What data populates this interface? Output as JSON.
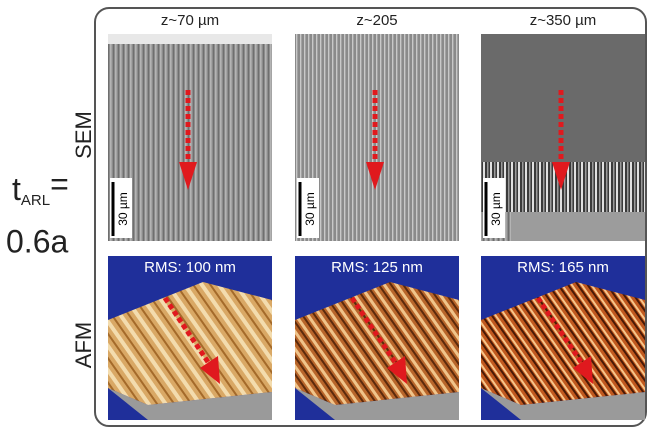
{
  "left_label": {
    "symbol": "t",
    "subscript": "ARL",
    "equals": "=",
    "value": "0.6a"
  },
  "row_labels": [
    "SEM",
    "AFM"
  ],
  "columns": [
    {
      "depth": "z~70 µm",
      "scale_bar": "30 µm",
      "rms": "RMS: 100 nm"
    },
    {
      "depth": "z~205",
      "scale_bar": "30 µm",
      "rms": "RMS: 125 nm"
    },
    {
      "depth": "z~350 µm",
      "scale_bar": "30 µm",
      "rms": "RMS: 165 nm"
    }
  ]
}
